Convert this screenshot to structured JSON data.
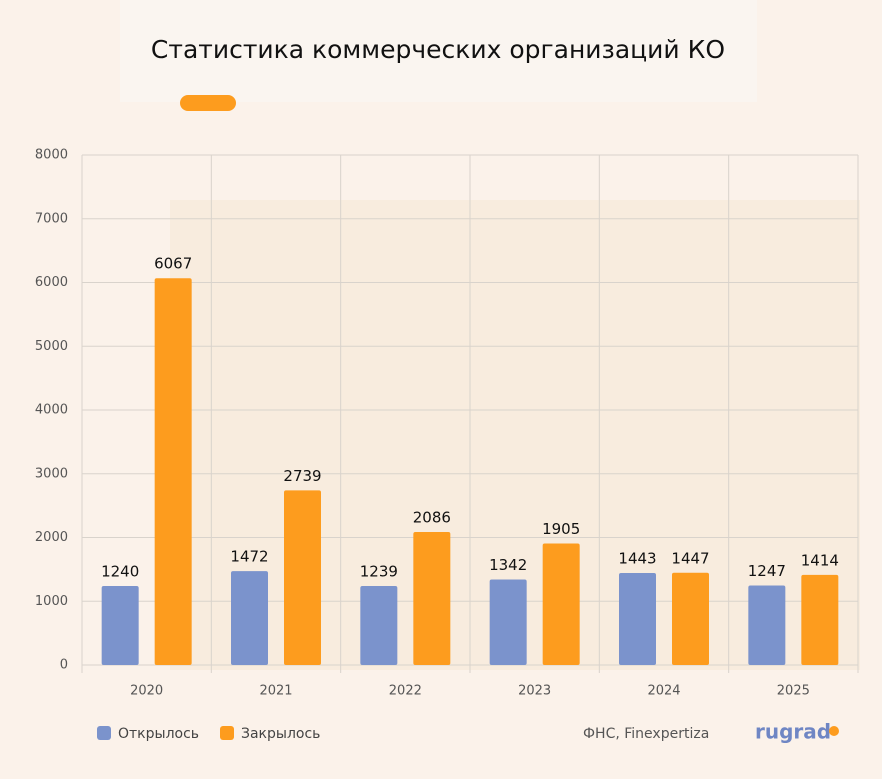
{
  "chart_data": {
    "type": "bar",
    "title": "Статистика коммерческих организаций КО",
    "categories": [
      "2020",
      "2021",
      "2022",
      "2023",
      "2024",
      "2025"
    ],
    "series": [
      {
        "name": "Открылось",
        "color": "#7b93cc",
        "values": [
          1240,
          1472,
          1239,
          1342,
          1443,
          1247
        ]
      },
      {
        "name": "Закрылось",
        "color": "#fd9c1e",
        "values": [
          6067,
          2739,
          2086,
          1905,
          1447,
          1414
        ]
      }
    ],
    "ylim": [
      0,
      8000
    ],
    "yticks": [
      0,
      1000,
      2000,
      3000,
      4000,
      5000,
      6000,
      7000,
      8000
    ],
    "grid": true,
    "source": "ФНС, Finexpertiza",
    "logo": "rugrad"
  }
}
